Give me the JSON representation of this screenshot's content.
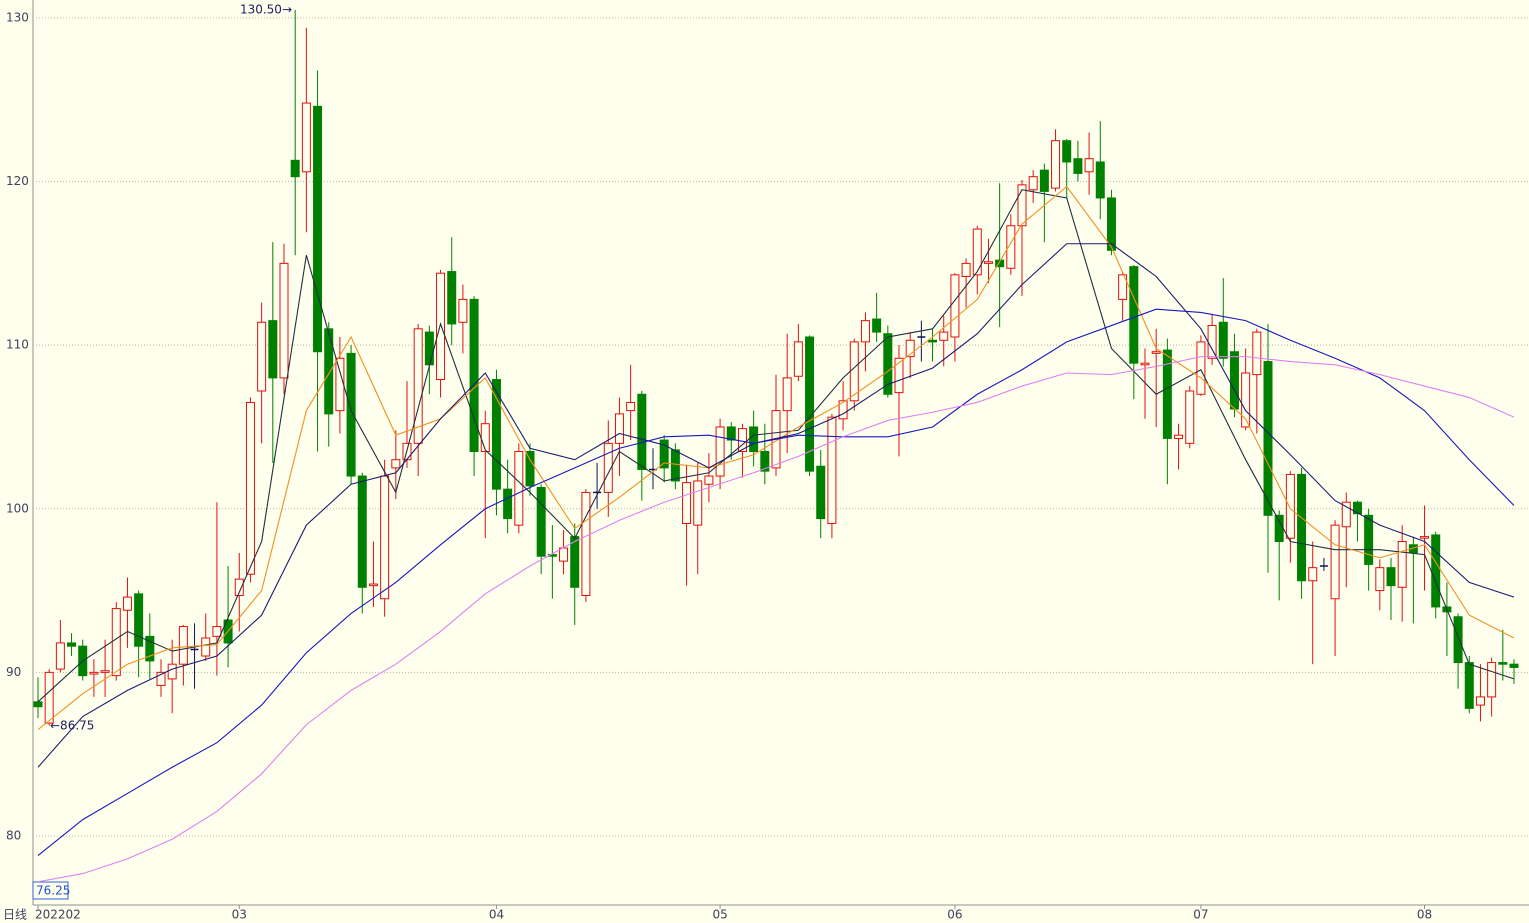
{
  "chart_data": {
    "type": "candlestick",
    "period": "日线",
    "cursor_price": 76.25,
    "annotations": [
      "130.50→",
      "←86.75"
    ],
    "categories": [
      "202202",
      null,
      null,
      null,
      null,
      null,
      null,
      null,
      null,
      null,
      null,
      null,
      null,
      null,
      null,
      null,
      null,
      null,
      "03",
      null,
      null,
      null,
      null,
      null,
      null,
      null,
      null,
      null,
      null,
      null,
      null,
      null,
      null,
      null,
      null,
      null,
      null,
      null,
      null,
      null,
      null,
      "04",
      null,
      null,
      null,
      null,
      null,
      null,
      null,
      null,
      null,
      null,
      null,
      null,
      null,
      null,
      null,
      null,
      null,
      null,
      null,
      "05",
      null,
      null,
      null,
      null,
      null,
      null,
      null,
      null,
      null,
      null,
      null,
      null,
      null,
      null,
      null,
      null,
      null,
      null,
      null,
      null,
      "06",
      null,
      null,
      null,
      null,
      null,
      null,
      null,
      null,
      null,
      null,
      null,
      null,
      null,
      null,
      null,
      null,
      null,
      null,
      null,
      null,
      null,
      "07",
      null,
      null,
      null,
      null,
      null,
      null,
      null,
      null,
      null,
      null,
      null,
      null,
      null,
      null,
      null,
      null,
      null,
      null,
      null,
      "08",
      null,
      null,
      null,
      null,
      null,
      null,
      null,
      null
    ],
    "open": [
      88.2,
      86.9,
      90.2,
      91.8,
      91.6,
      89.9,
      90,
      89.8,
      93.8,
      94.8,
      92.2,
      89.2,
      89.6,
      90.5,
      91.4,
      91,
      92.2,
      93.2,
      94.7,
      96,
      107.2,
      111.5,
      108,
      121.3,
      120.6,
      124.6,
      111,
      106,
      109.5,
      102,
      95.3,
      94.5,
      102.5,
      103,
      104,
      110.8,
      107.9,
      114.5,
      111.4,
      112.8,
      103.5,
      107.9,
      101.2,
      99,
      103.5,
      101.3,
      97.2,
      96.8,
      98.3,
      94.7,
      101,
      101,
      104,
      106,
      107,
      102.4,
      104.2,
      103.6,
      99.1,
      99,
      101.5,
      102,
      105,
      103.5,
      105,
      103.5,
      102.5,
      106,
      108.1,
      110.5,
      102.6,
      99.1,
      105.5,
      106.6,
      110.2,
      111.6,
      110.7,
      107.1,
      109.3,
      110.5,
      110.3,
      110.3,
      110.5,
      114.2,
      114.3,
      115,
      115.2,
      114.7,
      117.3,
      119.5,
      120.7,
      119.6,
      122.5,
      121.4,
      120.6,
      121.2,
      119,
      112.8,
      114.8,
      108.8,
      109.5,
      109.7,
      104.3,
      104,
      107,
      109.2,
      111.4,
      109.6,
      105,
      108.2,
      109,
      99.6,
      98.2,
      102.1,
      95.6,
      96.5,
      94.5,
      98.9,
      100.4,
      99.6,
      95,
      96.4,
      95.2,
      97.8,
      98.2,
      98.4,
      94,
      93.4,
      90.6,
      88,
      88.5,
      90.6,
      90.5
    ],
    "high": [
      89.7,
      90.2,
      93.2,
      92.4,
      92,
      90.8,
      92,
      94.3,
      95.8,
      95,
      93.6,
      90.8,
      92,
      92.9,
      93,
      93.6,
      100.4,
      96.5,
      97.3,
      106.8,
      112.6,
      116.3,
      116.2,
      130.5,
      129.4,
      126.8,
      111.4,
      110.5,
      110,
      102.2,
      98,
      103,
      104.8,
      107.8,
      111.3,
      111.2,
      114.6,
      116.6,
      113.7,
      113,
      106,
      108.5,
      103,
      104,
      104,
      101.5,
      99,
      98.7,
      99.1,
      101.2,
      102.8,
      105.4,
      106.8,
      108.8,
      107.2,
      103.7,
      104.5,
      104,
      102.7,
      102.8,
      103.4,
      105.5,
      105.3,
      105.2,
      106,
      105.2,
      108.2,
      110.7,
      111.3,
      110.6,
      103.6,
      105.8,
      107.8,
      110.4,
      112,
      113.2,
      111.2,
      110,
      110.8,
      111.5,
      111,
      111.8,
      114.4,
      115.3,
      117.3,
      116.5,
      119.9,
      118,
      120.1,
      120.7,
      121.1,
      123.2,
      122.6,
      122.5,
      123,
      123.7,
      119.5,
      114.5,
      114.9,
      109.8,
      111,
      110.4,
      105.2,
      107.5,
      110.6,
      111.9,
      114.1,
      110.7,
      109.8,
      111,
      111.3,
      99.9,
      102.3,
      102.5,
      98,
      97,
      99.3,
      101,
      100.5,
      100,
      96.9,
      97,
      99,
      98.3,
      100.2,
      98.6,
      95.5,
      93.6,
      91,
      90.5,
      90.9,
      92.6,
      90.8
    ],
    "low": [
      87.2,
      86.75,
      90,
      91,
      89.5,
      88.5,
      88.5,
      89.5,
      91.5,
      89.7,
      89.6,
      88.5,
      87.5,
      89.2,
      89,
      90.7,
      89.8,
      90.3,
      92.5,
      95.5,
      104,
      102.8,
      107,
      115.5,
      116.9,
      103.5,
      103.8,
      104.6,
      101.5,
      93.6,
      94,
      93.4,
      100.6,
      102.5,
      102,
      107,
      106.8,
      110,
      109.5,
      102,
      98.2,
      99.6,
      98.5,
      98.5,
      100.8,
      96,
      94.5,
      96,
      92.9,
      94.3,
      100,
      99.5,
      102,
      104.2,
      100.5,
      101.2,
      101.6,
      101.2,
      95.3,
      96,
      100.4,
      101.2,
      103,
      101.9,
      102.6,
      101.5,
      102,
      103.4,
      107.8,
      102,
      98.2,
      98.2,
      104.8,
      106,
      108.4,
      110.2,
      106.8,
      103.2,
      108,
      109,
      109,
      108.7,
      109,
      112.3,
      113.1,
      113.8,
      111.1,
      114.3,
      113,
      118.7,
      116.3,
      119.4,
      119,
      120,
      119.2,
      117.7,
      115.5,
      111.5,
      106.7,
      105.5,
      105,
      101.5,
      102.4,
      103.7,
      106.9,
      108.8,
      108.7,
      105.6,
      104.8,
      104.6,
      96.1,
      94.4,
      96.7,
      94.5,
      90.5,
      96.2,
      91,
      95.2,
      98,
      95,
      93.8,
      93.2,
      93.1,
      93,
      95,
      93.3,
      91,
      89,
      87.5,
      87,
      87.3,
      89.5,
      89.3
    ],
    "close": [
      87.9,
      90,
      91.8,
      91.6,
      89.8,
      90,
      90.1,
      93.9,
      94.6,
      91.6,
      90.7,
      90,
      90.5,
      92.8,
      91.4,
      92.1,
      92.8,
      91.8,
      95.7,
      106.5,
      111.4,
      108,
      115,
      120.3,
      124.8,
      109.6,
      105.8,
      109.2,
      102,
      95.2,
      95.4,
      102,
      103,
      104,
      111,
      108.8,
      114.4,
      111.3,
      112.8,
      103.5,
      105.2,
      101.2,
      99.4,
      103.5,
      101.4,
      97.1,
      97.1,
      97.6,
      95.2,
      101,
      101,
      104,
      105.8,
      106.5,
      102.4,
      102.4,
      102.5,
      101.7,
      101.6,
      101.7,
      102,
      105,
      104.2,
      104.9,
      103.5,
      102.3,
      106,
      108,
      110.2,
      102.3,
      99.4,
      105.6,
      106.6,
      110.2,
      111.5,
      110.8,
      107,
      109.2,
      110.3,
      110.5,
      110.2,
      110.8,
      114.3,
      115,
      117.1,
      115.1,
      114.8,
      117.3,
      119.8,
      120.3,
      119.4,
      122.5,
      121.2,
      120.5,
      121.4,
      119,
      115.8,
      114.3,
      108.9,
      108.9,
      109.6,
      104.3,
      104.5,
      107.2,
      110.2,
      111.2,
      109.2,
      106.1,
      108.3,
      110.8,
      99.6,
      98,
      102.1,
      95.6,
      96.4,
      96.5,
      99,
      100.4,
      99.7,
      96.6,
      96.4,
      95.3,
      98,
      97.3,
      98.3,
      94,
      93.7,
      90.6,
      87.8,
      88.5,
      90.6,
      90.5,
      90.3
    ],
    "up_color": "#e01010",
    "down_color": "#008000",
    "flat_color": "#101060",
    "series": [
      {
        "color": "#203040",
        "x": [
          0,
          4,
          8,
          12,
          16,
          20,
          24,
          28,
          32,
          36,
          40,
          44,
          48,
          52,
          56,
          60,
          64,
          68,
          72,
          76,
          80,
          84,
          88,
          92,
          96,
          100,
          104,
          108,
          112,
          116,
          120,
          124,
          128,
          132
        ],
        "values": [
          88.2,
          90.7,
          92.5,
          91.3,
          91.8,
          98,
          115.5,
          106,
          101,
          111.3,
          103.6,
          101,
          98.2,
          103.5,
          101.7,
          102.2,
          104.5,
          104.8,
          108,
          110.5,
          111,
          114.5,
          119.5,
          119,
          109.8,
          107,
          108.5,
          103,
          98,
          97.5,
          97.5,
          97.2,
          90.5,
          89.6
        ]
      },
      {
        "color": "#f09020",
        "x": [
          0,
          4,
          8,
          12,
          16,
          20,
          24,
          28,
          32,
          36,
          40,
          44,
          48,
          52,
          56,
          60,
          64,
          68,
          72,
          76,
          80,
          84,
          88,
          92,
          96,
          100,
          104,
          108,
          112,
          116,
          120,
          124,
          128,
          132
        ],
        "values": [
          86.5,
          88.7,
          90.5,
          91.5,
          91.7,
          95,
          106,
          110.5,
          104.5,
          105.5,
          108,
          103,
          98.8,
          100.7,
          102.8,
          102.5,
          103.3,
          105,
          106.5,
          108.4,
          110.5,
          112.8,
          117.4,
          119.7,
          116,
          109.8,
          108,
          105.5,
          100,
          97.8,
          97,
          97.8,
          93.5,
          92.1
        ]
      },
      {
        "color": "#1c1c70",
        "x": [
          0,
          4,
          8,
          12,
          16,
          20,
          24,
          28,
          32,
          36,
          40,
          44,
          48,
          52,
          56,
          60,
          64,
          68,
          72,
          76,
          80,
          84,
          88,
          92,
          96,
          100,
          104,
          108,
          112,
          116,
          120,
          124,
          128,
          132
        ],
        "values": [
          84.2,
          87.3,
          88.9,
          90.2,
          91,
          93.5,
          99,
          101.5,
          102.2,
          105.5,
          108.3,
          103.7,
          103,
          104.6,
          103.9,
          102.5,
          104,
          104.6,
          105.8,
          107.6,
          108.6,
          110.7,
          113.7,
          116.2,
          116.2,
          114.2,
          111,
          106,
          103.3,
          100.5,
          99,
          98,
          95.5,
          94.6
        ]
      },
      {
        "color": "#1818c0",
        "x": [
          0,
          4,
          8,
          12,
          16,
          20,
          24,
          28,
          32,
          36,
          40,
          44,
          48,
          52,
          56,
          60,
          64,
          68,
          72,
          76,
          80,
          84,
          88,
          92,
          96,
          100,
          104,
          108,
          112,
          116,
          120,
          124,
          128,
          132
        ],
        "values": [
          78.8,
          81,
          82.6,
          84.2,
          85.7,
          88,
          91.2,
          93.6,
          95.5,
          97.8,
          100,
          101.3,
          102.5,
          103.7,
          104.4,
          104.5,
          104,
          104.5,
          104.4,
          104.4,
          105,
          107,
          108.5,
          110.2,
          111.2,
          112.2,
          112,
          111.5,
          110.3,
          109.2,
          108,
          106,
          103,
          100.2
        ]
      },
      {
        "color": "#e080f0",
        "x": [
          0,
          4,
          8,
          12,
          16,
          20,
          24,
          28,
          32,
          36,
          40,
          44,
          48,
          52,
          56,
          60,
          64,
          68,
          72,
          76,
          80,
          84,
          88,
          92,
          96,
          100,
          104,
          108,
          112,
          116,
          120,
          124,
          128,
          132
        ],
        "values": [
          77.2,
          77.7,
          78.6,
          79.8,
          81.5,
          83.8,
          86.8,
          88.9,
          90.5,
          92.5,
          94.8,
          96.5,
          98,
          99.3,
          100.4,
          101.3,
          102.2,
          103.2,
          104.4,
          105.4,
          105.9,
          106.5,
          107.5,
          108.3,
          108.2,
          108.7,
          109.3,
          109.3,
          109,
          108.8,
          108.2,
          107.5,
          106.8,
          105.6
        ]
      }
    ],
    "ylim": [
      75.78,
      131.1
    ],
    "yticks": [
      80,
      90,
      100,
      110,
      120,
      130
    ],
    "grid": true
  }
}
